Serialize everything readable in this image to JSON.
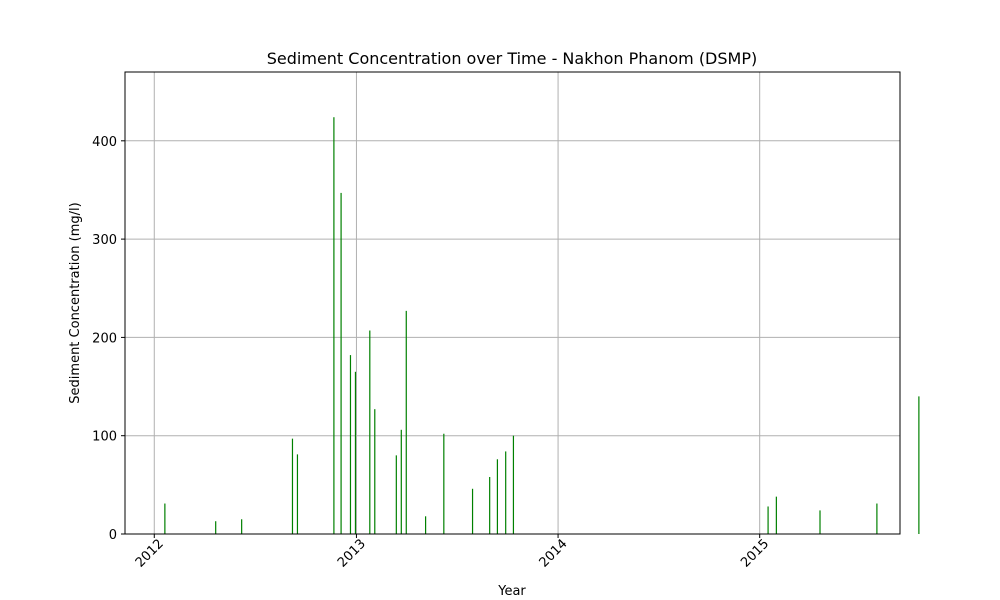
{
  "chart_data": {
    "type": "bar",
    "title": "Sediment Concentration over Time - Nakhon Phanom (DSMP)",
    "xlabel": "Year",
    "ylabel": "Sediment Concentration (mg/l)",
    "xlim": [
      "2011-11-09",
      "2015-09-12"
    ],
    "ylim": [
      0,
      470
    ],
    "x_ticks": [
      "2012",
      "2013",
      "2014",
      "2015"
    ],
    "y_ticks": [
      0,
      100,
      200,
      300,
      400
    ],
    "grid": true,
    "bar_color": "#008000",
    "points": [
      {
        "date": "2012-01-20",
        "value": 31
      },
      {
        "date": "2012-04-21",
        "value": 13
      },
      {
        "date": "2012-06-07",
        "value": 15
      },
      {
        "date": "2012-09-07",
        "value": 97
      },
      {
        "date": "2012-09-16",
        "value": 81
      },
      {
        "date": "2012-11-21",
        "value": 424
      },
      {
        "date": "2012-12-04",
        "value": 347
      },
      {
        "date": "2012-12-21",
        "value": 182
      },
      {
        "date": "2012-12-30",
        "value": 165
      },
      {
        "date": "2013-01-25",
        "value": 207
      },
      {
        "date": "2013-02-03",
        "value": 127
      },
      {
        "date": "2013-03-14",
        "value": 80
      },
      {
        "date": "2013-03-23",
        "value": 106
      },
      {
        "date": "2013-04-01",
        "value": 227
      },
      {
        "date": "2013-05-06",
        "value": 18
      },
      {
        "date": "2013-06-08",
        "value": 102
      },
      {
        "date": "2013-07-30",
        "value": 46
      },
      {
        "date": "2013-08-30",
        "value": 58
      },
      {
        "date": "2013-09-13",
        "value": 76
      },
      {
        "date": "2013-09-28",
        "value": 84
      },
      {
        "date": "2013-10-12",
        "value": 100
      },
      {
        "date": "2015-01-16",
        "value": 28
      },
      {
        "date": "2015-01-31",
        "value": 38
      },
      {
        "date": "2015-04-20",
        "value": 24
      },
      {
        "date": "2015-08-01",
        "value": 31
      },
      {
        "date": "2015-10-16",
        "value": 140
      }
    ]
  }
}
